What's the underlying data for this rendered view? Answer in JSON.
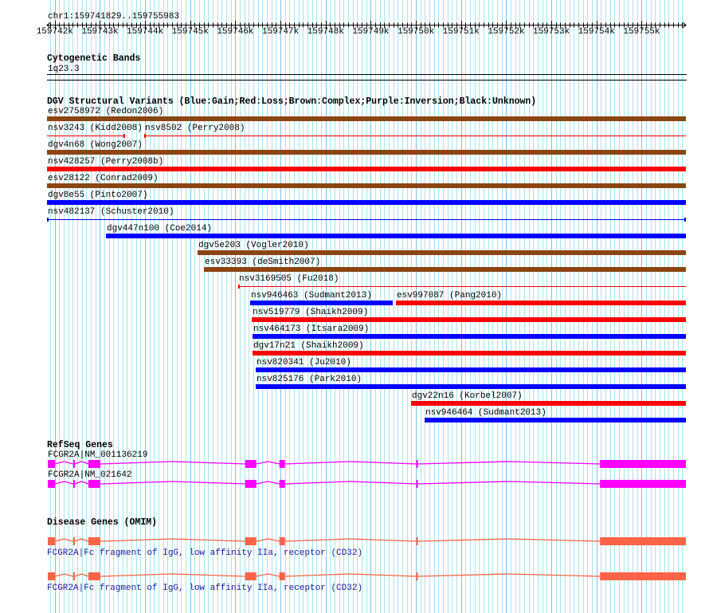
{
  "region": {
    "label": "chr1:159741829..159755983",
    "start": 159741829,
    "end": 159755983
  },
  "ruler": {
    "ticks": [
      "159742k",
      "159743k",
      "159744k",
      "159745k",
      "159746k",
      "159747k",
      "159748k",
      "159749k",
      "159750k",
      "159751k",
      "159752k",
      "159753k",
      "159754k",
      "159755k"
    ]
  },
  "colors": {
    "gain": "#0000ff",
    "loss": "#ff0000",
    "complex": "#8b4513",
    "minor_grid": "#a8e4ec",
    "major_grid": "#7fbfe8",
    "refseq": "#ff00ff",
    "omim": "#ff6347",
    "omim_text": "#1a1aa0"
  },
  "cytobands": {
    "title": "Cytogenetic Bands",
    "band": "1q23.3"
  },
  "dgv": {
    "title": "DGV Structural Variants (Blue:Gain;Red:Loss;Brown:Complex;Purple:Inversion;Black:Unknown)",
    "rows": [
      [
        {
          "label": "esv2758972 (Redon2006)",
          "start": 159741829,
          "end": 159755983,
          "type": "complex",
          "thin": false
        }
      ],
      [
        {
          "label": "nsv3243 (Kidd2008)",
          "start": 159741829,
          "end": 159743557,
          "type": "loss",
          "thin": true
        },
        {
          "label": "nsv8502 (Perry2008)",
          "start": 159743980,
          "end": 159755983,
          "type": "loss",
          "thin": true
        }
      ],
      [
        {
          "label": "dgv4n68 (Wong2007)",
          "start": 159741829,
          "end": 159755983,
          "type": "complex",
          "thin": false
        }
      ],
      [
        {
          "label": "nsv428257 (Perry2008b)",
          "start": 159741829,
          "end": 159755983,
          "type": "loss",
          "thin": false
        }
      ],
      [
        {
          "label": "esv28122 (Conrad2009)",
          "start": 159741829,
          "end": 159755983,
          "type": "complex",
          "thin": false
        }
      ],
      [
        {
          "label": "dgv8e55 (Pinto2007)",
          "start": 159741829,
          "end": 159755983,
          "type": "gain",
          "thin": false
        }
      ],
      [
        {
          "label": "nsv482137 (Schuster2010)",
          "start": 159741829,
          "end": 159755983,
          "type": "gain",
          "thin": true
        }
      ],
      [
        {
          "label": "dgv447n100 (Coe2014)",
          "start": 159743134,
          "end": 159755983,
          "type": "gain",
          "thin": false
        }
      ],
      [
        {
          "label": "dgv5e203 (Vogler2010)",
          "start": 159745161,
          "end": 159755983,
          "type": "complex",
          "thin": false
        }
      ],
      [
        {
          "label": "esv33393 (deSmith2007)",
          "start": 159745302,
          "end": 159755983,
          "type": "complex",
          "thin": false
        }
      ],
      [
        {
          "label": "nsv3169505 (Fu2018)",
          "start": 159746060,
          "end": 159755983,
          "type": "loss",
          "thin": true
        }
      ],
      [
        {
          "label": "nsv946463 (Sudmant2013)",
          "start": 159746325,
          "end": 159749480,
          "type": "gain",
          "thin": false
        },
        {
          "label": "esv997087 (Pang2010)",
          "start": 159749551,
          "end": 159755983,
          "type": "loss",
          "thin": false
        }
      ],
      [
        {
          "label": "nsv519779 (Shaikh2009)",
          "start": 159746360,
          "end": 159755983,
          "type": "loss",
          "thin": false
        }
      ],
      [
        {
          "label": "nsv464173 (Itsara2009)",
          "start": 159746378,
          "end": 159755983,
          "type": "gain",
          "thin": false
        }
      ],
      [
        {
          "label": "dgv17n21 (Shaikh2009)",
          "start": 159746378,
          "end": 159755983,
          "type": "loss",
          "thin": false
        }
      ],
      [
        {
          "label": "nsv820341 (Ju2010)",
          "start": 159746448,
          "end": 159755983,
          "type": "gain",
          "thin": false
        }
      ],
      [
        {
          "label": "nsv825176 (Park2010)",
          "start": 159746448,
          "end": 159755983,
          "type": "gain",
          "thin": false
        }
      ],
      [
        {
          "label": "dgv22n16 (Korbel2007)",
          "start": 159749886,
          "end": 159755983,
          "type": "loss",
          "thin": false
        }
      ],
      [
        {
          "label": "nsv946464 (Sudmant2013)",
          "start": 159750186,
          "end": 159755983,
          "type": "gain",
          "thin": false
        }
      ]
    ]
  },
  "refseq": {
    "title": "RefSeq Genes",
    "genes": [
      {
        "label": "FCGR2A|NM_001136219"
      },
      {
        "label": "FCGR2A|NM_021642"
      }
    ]
  },
  "omim": {
    "title": "Disease Genes (OMIM)",
    "genes": [
      {
        "label": "FCGR2A|Fc fragment of IgG, low affinity IIa, receptor (CD32)"
      },
      {
        "label": "FCGR2A|Fc fragment of IgG, low affinity IIa, receptor (CD32)"
      }
    ]
  },
  "exons": [
    [
      159741847,
      159742006
    ],
    [
      159742410,
      159742445
    ],
    [
      159742745,
      159743010
    ],
    [
      159746219,
      159746466
    ],
    [
      159746977,
      159747100
    ],
    [
      159750009,
      159750045
    ],
    [
      159754079,
      159755983
    ]
  ]
}
